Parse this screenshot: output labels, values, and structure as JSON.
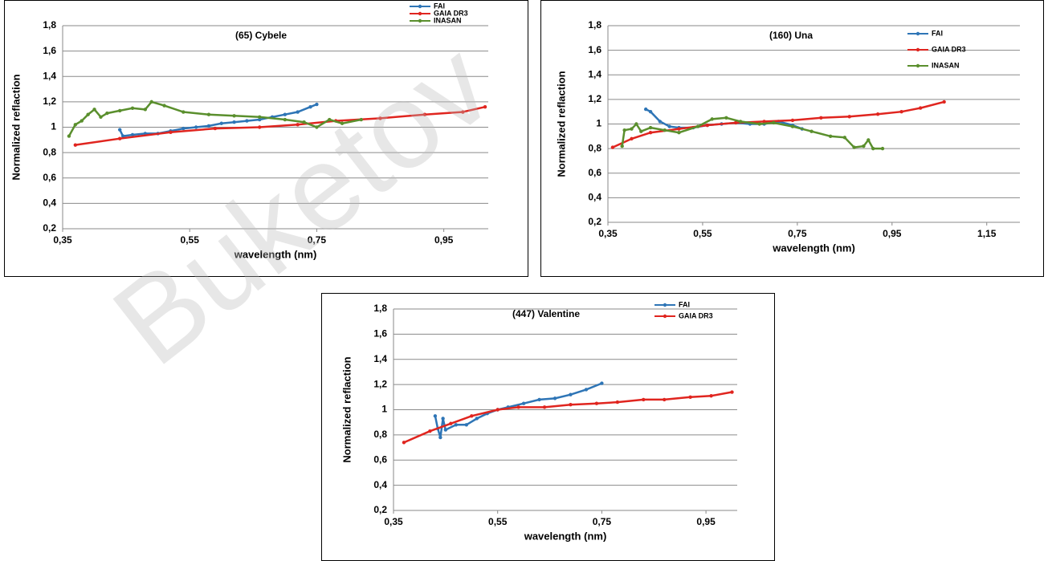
{
  "watermark": "Buketov",
  "chart_data": [
    {
      "type": "line",
      "title": "(65) Cybele",
      "xlabel": "wavelength (nm)",
      "ylabel": "Normalized reflaction",
      "xlim": [
        0.35,
        1.02
      ],
      "ylim": [
        0.2,
        1.8
      ],
      "grid": true,
      "legend": "upper right",
      "xticks": [
        {
          "value": 0.35,
          "label": "0,35"
        },
        {
          "value": 0.55,
          "label": "0,55"
        },
        {
          "value": 0.75,
          "label": "0,75"
        },
        {
          "value": 0.95,
          "label": "0,95"
        }
      ],
      "yticks": [
        {
          "value": 0.2,
          "label": "0,2"
        },
        {
          "value": 0.4,
          "label": "0,4"
        },
        {
          "value": 0.6,
          "label": "0,6"
        },
        {
          "value": 0.8,
          "label": "0,8"
        },
        1,
        {
          "value": 1.2,
          "label": "1,2"
        },
        {
          "value": 1.4,
          "label": "1,4"
        },
        {
          "value": 1.6,
          "label": "1,6"
        },
        {
          "value": 1.8,
          "label": "1,8"
        }
      ],
      "series": [
        {
          "name": "FAI",
          "color": "#2e75b6",
          "x": [
            0.44,
            0.445,
            0.46,
            0.48,
            0.5,
            0.52,
            0.54,
            0.56,
            0.58,
            0.6,
            0.62,
            0.64,
            0.66,
            0.68,
            0.7,
            0.72,
            0.74,
            0.75
          ],
          "values": [
            0.98,
            0.93,
            0.94,
            0.95,
            0.95,
            0.97,
            0.99,
            1.0,
            1.01,
            1.03,
            1.04,
            1.05,
            1.06,
            1.08,
            1.1,
            1.12,
            1.16,
            1.18
          ]
        },
        {
          "name": "GAIA DR3",
          "color": "#e0251f",
          "x": [
            0.37,
            0.44,
            0.52,
            0.59,
            0.66,
            0.72,
            0.78,
            0.85,
            0.92,
            0.98,
            1.015
          ],
          "values": [
            0.86,
            0.91,
            0.96,
            0.99,
            1.0,
            1.02,
            1.05,
            1.07,
            1.1,
            1.12,
            1.16
          ]
        },
        {
          "name": "INASAN",
          "color": "#5a8f2d",
          "x": [
            0.36,
            0.37,
            0.38,
            0.39,
            0.4,
            0.41,
            0.42,
            0.44,
            0.46,
            0.48,
            0.49,
            0.51,
            0.54,
            0.58,
            0.62,
            0.66,
            0.7,
            0.73,
            0.75,
            0.77,
            0.79,
            0.82
          ],
          "values": [
            0.93,
            1.02,
            1.05,
            1.1,
            1.14,
            1.08,
            1.11,
            1.13,
            1.15,
            1.14,
            1.2,
            1.17,
            1.12,
            1.1,
            1.09,
            1.08,
            1.06,
            1.04,
            1.0,
            1.06,
            1.03,
            1.06
          ]
        }
      ]
    },
    {
      "type": "line",
      "title": "(160) Una",
      "xlabel": "wavelength (nm)",
      "ylabel": "Normalized reflaction",
      "xlim": [
        0.35,
        1.22
      ],
      "ylim": [
        0.2,
        1.8
      ],
      "grid": true,
      "legend": "upper right",
      "xticks": [
        {
          "value": 0.35,
          "label": "0,35"
        },
        {
          "value": 0.55,
          "label": "0,55"
        },
        {
          "value": 0.75,
          "label": "0,75"
        },
        {
          "value": 0.95,
          "label": "0,95"
        },
        {
          "value": 1.15,
          "label": "1,15"
        }
      ],
      "yticks": [
        {
          "value": 0.2,
          "label": "0,2"
        },
        {
          "value": 0.4,
          "label": "0,4"
        },
        {
          "value": 0.6,
          "label": "0,6"
        },
        {
          "value": 0.8,
          "label": "0,8"
        },
        1,
        {
          "value": 1.2,
          "label": "1,2"
        },
        {
          "value": 1.4,
          "label": "1,4"
        },
        {
          "value": 1.6,
          "label": "1,6"
        },
        {
          "value": 1.8,
          "label": "1,8"
        }
      ],
      "series": [
        {
          "name": "FAI",
          "color": "#2e75b6",
          "x": [
            0.43,
            0.44,
            0.46,
            0.48,
            0.5,
            0.53,
            0.56,
            0.59,
            0.62,
            0.65,
            0.68,
            0.71,
            0.74,
            0.76
          ],
          "values": [
            1.12,
            1.1,
            1.02,
            0.98,
            0.97,
            0.97,
            0.99,
            1.0,
            1.01,
            1.0,
            1.0,
            1.02,
            0.99,
            0.96
          ]
        },
        {
          "name": "GAIA DR3",
          "color": "#e0251f",
          "x": [
            0.36,
            0.4,
            0.44,
            0.5,
            0.56,
            0.62,
            0.68,
            0.74,
            0.8,
            0.86,
            0.92,
            0.97,
            1.01,
            1.06
          ],
          "values": [
            0.81,
            0.88,
            0.93,
            0.96,
            0.99,
            1.01,
            1.02,
            1.03,
            1.05,
            1.06,
            1.08,
            1.1,
            1.13,
            1.18
          ]
        },
        {
          "name": "INASAN",
          "color": "#5a8f2d",
          "x": [
            0.38,
            0.385,
            0.4,
            0.41,
            0.42,
            0.44,
            0.47,
            0.5,
            0.54,
            0.57,
            0.6,
            0.63,
            0.67,
            0.7,
            0.74,
            0.78,
            0.82,
            0.85,
            0.87,
            0.89,
            0.9,
            0.91,
            0.93
          ],
          "values": [
            0.82,
            0.95,
            0.96,
            1.0,
            0.94,
            0.97,
            0.95,
            0.93,
            0.98,
            1.04,
            1.05,
            1.02,
            1.0,
            1.01,
            0.98,
            0.94,
            0.9,
            0.89,
            0.81,
            0.82,
            0.87,
            0.8,
            0.8
          ]
        }
      ]
    },
    {
      "type": "line",
      "title": "(447) Valentine",
      "xlabel": "wavelength (nm)",
      "ylabel": "Normalized reflaction",
      "xlim": [
        0.35,
        1.01
      ],
      "ylim": [
        0.2,
        1.8
      ],
      "grid": true,
      "legend": "upper right",
      "xticks": [
        {
          "value": 0.35,
          "label": "0,35"
        },
        {
          "value": 0.55,
          "label": "0,55"
        },
        {
          "value": 0.75,
          "label": "0,75"
        },
        {
          "value": 0.95,
          "label": "0,95"
        }
      ],
      "yticks": [
        {
          "value": 0.2,
          "label": "0,2"
        },
        {
          "value": 0.4,
          "label": "0,4"
        },
        {
          "value": 0.6,
          "label": "0,6"
        },
        {
          "value": 0.8,
          "label": "0,8"
        },
        1,
        {
          "value": 1.2,
          "label": "1,2"
        },
        {
          "value": 1.4,
          "label": "1,4"
        },
        {
          "value": 1.6,
          "label": "1,6"
        },
        {
          "value": 1.8,
          "label": "1,8"
        }
      ],
      "series": [
        {
          "name": "FAI",
          "color": "#2e75b6",
          "x": [
            0.43,
            0.435,
            0.44,
            0.445,
            0.45,
            0.47,
            0.49,
            0.51,
            0.53,
            0.55,
            0.57,
            0.6,
            0.63,
            0.66,
            0.69,
            0.72,
            0.75
          ],
          "values": [
            0.95,
            0.85,
            0.78,
            0.93,
            0.84,
            0.88,
            0.88,
            0.93,
            0.97,
            1.0,
            1.02,
            1.05,
            1.08,
            1.09,
            1.12,
            1.16,
            1.21
          ]
        },
        {
          "name": "GAIA DR3",
          "color": "#e0251f",
          "x": [
            0.37,
            0.42,
            0.46,
            0.5,
            0.55,
            0.59,
            0.64,
            0.69,
            0.74,
            0.78,
            0.83,
            0.87,
            0.92,
            0.96,
            1.0
          ],
          "values": [
            0.74,
            0.83,
            0.89,
            0.95,
            1.0,
            1.02,
            1.02,
            1.04,
            1.05,
            1.06,
            1.08,
            1.08,
            1.1,
            1.11,
            1.14
          ]
        }
      ]
    }
  ]
}
